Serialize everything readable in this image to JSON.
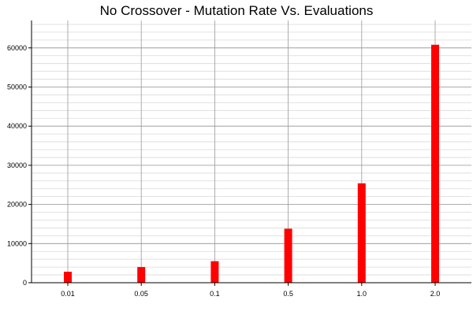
{
  "chart_data": {
    "type": "bar",
    "title": "No Crossover - Mutation Rate Vs. Evaluations",
    "xlabel": "",
    "ylabel": "",
    "categories": [
      "0.01",
      "0.05",
      "0.1",
      "0.5",
      "1.0",
      "2.0"
    ],
    "values": [
      2800,
      4000,
      5500,
      13800,
      25400,
      60800
    ],
    "ylim": [
      0,
      67000
    ],
    "yticks": [
      0,
      10000,
      20000,
      30000,
      40000,
      50000,
      60000
    ],
    "ytick_labels": [
      "0",
      "10000",
      "20000",
      "30000",
      "40000",
      "50000",
      "60000"
    ],
    "minor_grid_step": 2000,
    "grid": true,
    "bar_color": "#ff0000",
    "major_grid_color": "#999999",
    "minor_grid_color": "#d9d9d9"
  }
}
